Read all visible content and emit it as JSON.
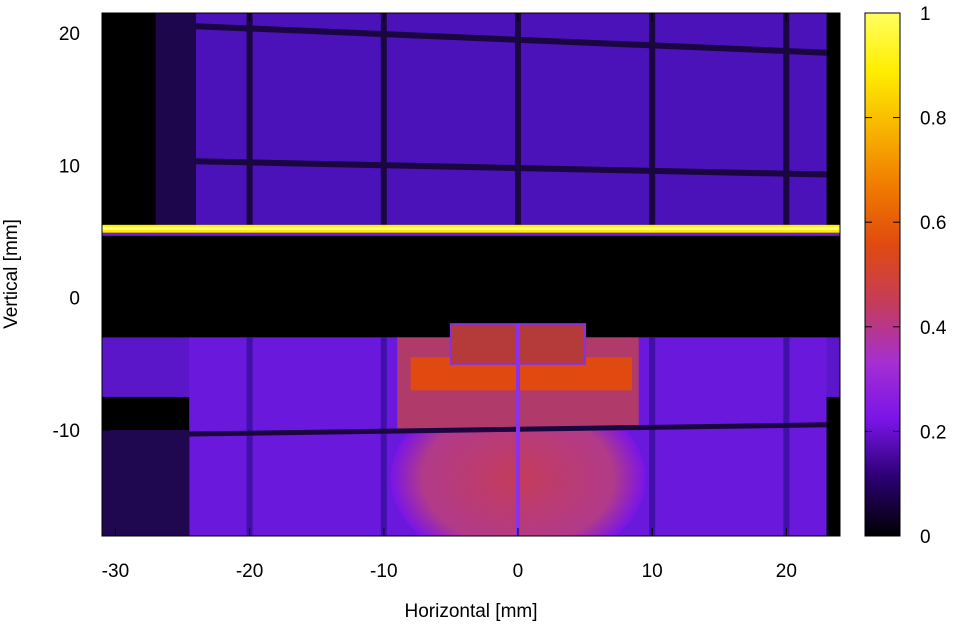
{
  "chart_data": {
    "type": "heatmap",
    "title": "",
    "xlabel": "Horizontal [mm]",
    "ylabel": "Vertical [mm]",
    "xlim": [
      -31,
      24
    ],
    "ylim": [
      -18,
      21.5
    ],
    "x_ticks": [
      -30,
      -20,
      -10,
      0,
      10,
      20
    ],
    "x_tick_labels": [
      "-30",
      "-20",
      "-10",
      "0",
      "10",
      "20"
    ],
    "y_ticks": [
      -10,
      0,
      10,
      20
    ],
    "y_tick_labels": [
      "-10",
      "0",
      "10",
      "20"
    ],
    "colorbar": {
      "range": [
        0,
        1
      ],
      "ticks": [
        0,
        0.2,
        0.4,
        0.6,
        0.8,
        1
      ],
      "tick_labels": [
        "0",
        "0.2",
        "0.4",
        "0.6",
        "0.8",
        "1"
      ],
      "colormap": [
        "#000000",
        "#2a0070",
        "#7a14e8",
        "#a52fd0",
        "#c43c5a",
        "#e04a10",
        "#f07a00",
        "#f8b400",
        "#ffee00",
        "#ffff60"
      ]
    },
    "grid": false,
    "features": [
      {
        "kind": "bright_line",
        "y": 5.2,
        "intensity": 1.0
      },
      {
        "kind": "dark_gap",
        "y_range": [
          -1.5,
          5
        ],
        "intensity": 0.0
      },
      {
        "kind": "upper_grid_region",
        "y_range": [
          5.5,
          21.5
        ],
        "intensity": 0.2
      },
      {
        "kind": "lower_region",
        "y_range": [
          -18,
          -3
        ],
        "intensity": 0.22
      },
      {
        "kind": "hot_block",
        "x_range": [
          -9,
          9
        ],
        "y_range": [
          -10,
          -3
        ],
        "intensity": 0.55
      },
      {
        "kind": "hot_circle",
        "center": [
          0,
          -14
        ],
        "intensity": 0.48
      },
      {
        "kind": "notch_block",
        "x_range": [
          -5,
          5
        ],
        "y_range": [
          -5,
          -2
        ],
        "intensity": 0.45
      }
    ]
  }
}
